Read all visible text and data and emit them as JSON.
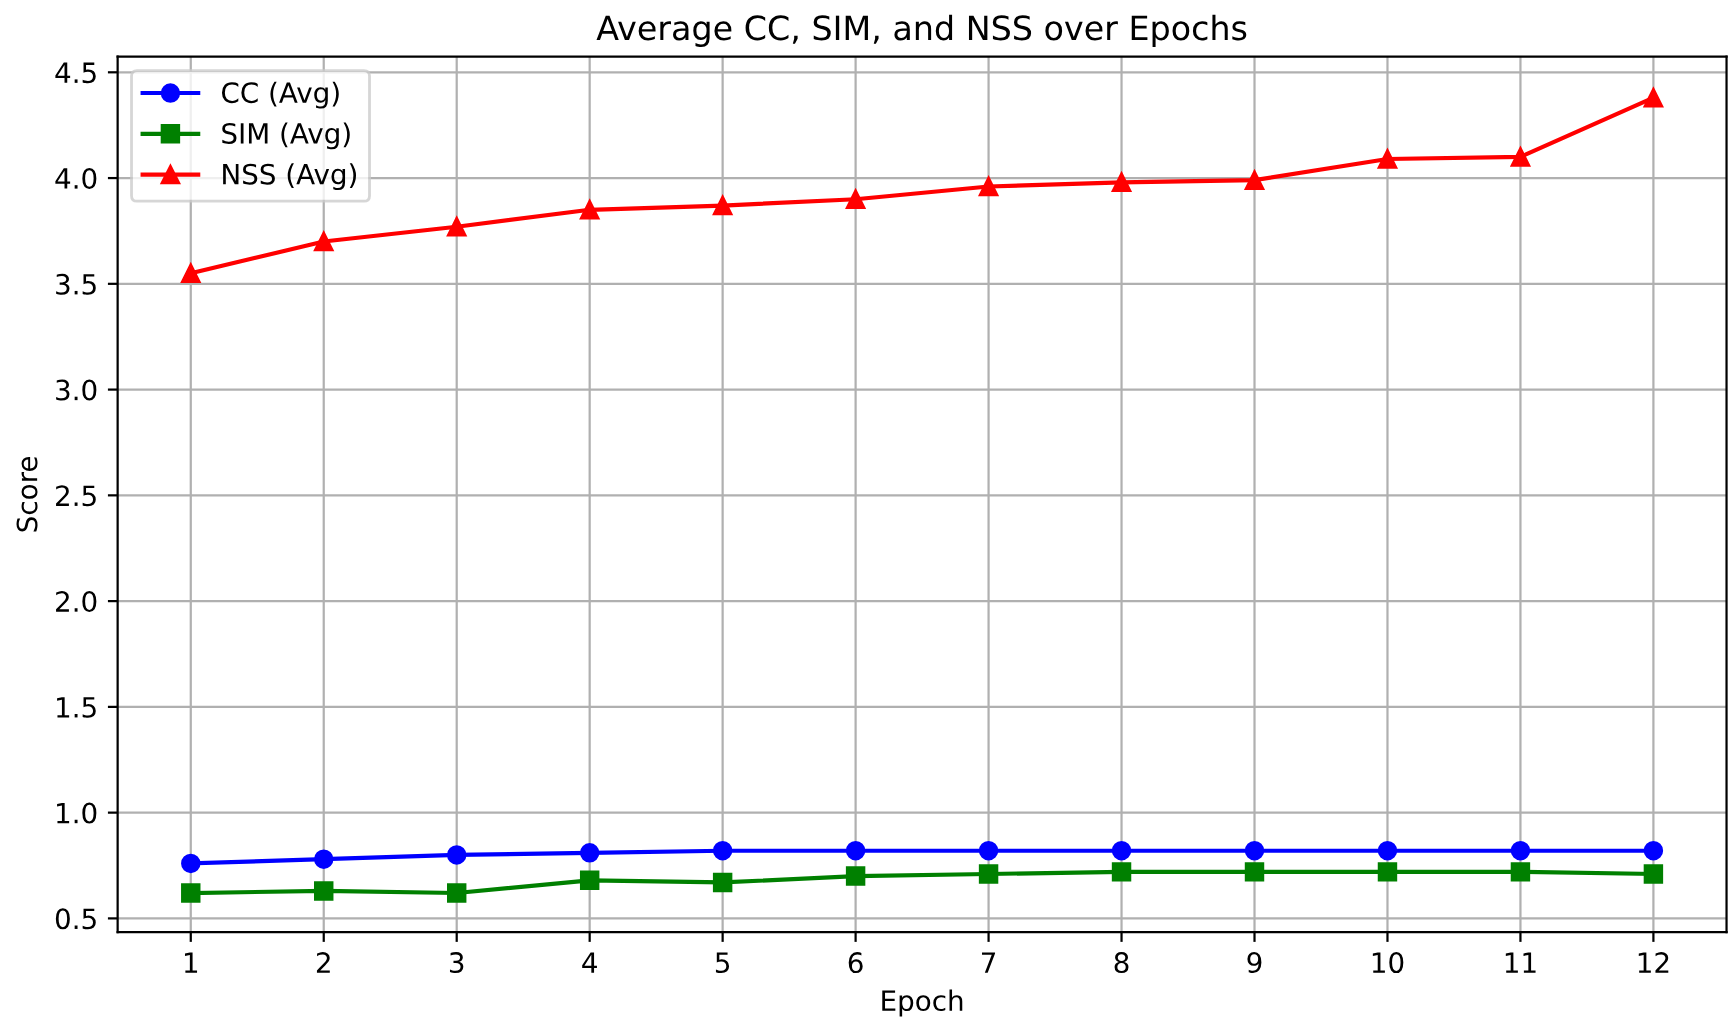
{
  "chart_data": {
    "type": "line",
    "title": "Average CC, SIM, and NSS over Epochs",
    "xlabel": "Epoch",
    "ylabel": "Score",
    "x": [
      1,
      2,
      3,
      4,
      5,
      6,
      7,
      8,
      9,
      10,
      11,
      12
    ],
    "series": [
      {
        "name": "CC (Avg)",
        "color": "#0000ff",
        "marker": "circle",
        "values": [
          0.76,
          0.78,
          0.8,
          0.81,
          0.82,
          0.82,
          0.82,
          0.82,
          0.82,
          0.82,
          0.82,
          0.82
        ]
      },
      {
        "name": "SIM (Avg)",
        "color": "#008000",
        "marker": "square",
        "values": [
          0.62,
          0.63,
          0.62,
          0.68,
          0.67,
          0.7,
          0.71,
          0.72,
          0.72,
          0.72,
          0.72,
          0.71
        ]
      },
      {
        "name": "NSS (Avg)",
        "color": "#ff0000",
        "marker": "triangle",
        "values": [
          3.55,
          3.7,
          3.77,
          3.85,
          3.87,
          3.9,
          3.96,
          3.98,
          3.99,
          4.09,
          4.1,
          4.38
        ]
      }
    ],
    "xlim": [
      0.45,
      12.55
    ],
    "xticks": [
      1,
      2,
      3,
      4,
      5,
      6,
      7,
      8,
      9,
      10,
      11,
      12
    ],
    "ylim": [
      0.435,
      4.574
    ],
    "yticks": [
      {
        "value": 0.5,
        "label": "0.5"
      },
      {
        "value": 1,
        "label": "1.0"
      },
      {
        "value": 1.5,
        "label": "1.5"
      },
      {
        "value": 2,
        "label": "2.0"
      },
      {
        "value": 2.5,
        "label": "2.5"
      },
      {
        "value": 3,
        "label": "3.0"
      },
      {
        "value": 3.5,
        "label": "3.5"
      },
      {
        "value": 4,
        "label": "4.0"
      },
      {
        "value": 4.5,
        "label": "4.5"
      }
    ],
    "grid": true,
    "legend": "top left",
    "line_style": "solid"
  }
}
